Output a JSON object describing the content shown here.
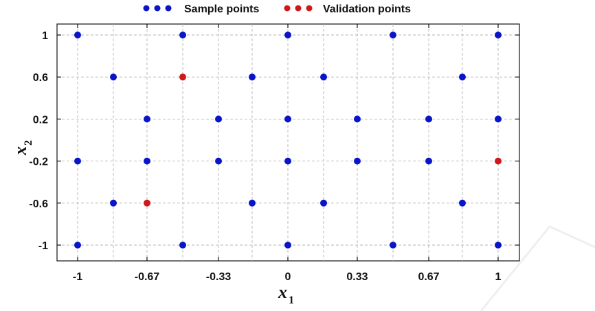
{
  "chart_data": {
    "type": "scatter",
    "xlabel": "x",
    "xlabel_sub": "1",
    "ylabel": "x",
    "ylabel_sub": "2",
    "xlim": [
      -1,
      1
    ],
    "ylim": [
      -1,
      1
    ],
    "x_ticks": [
      -1,
      -0.67,
      -0.33,
      0,
      0.33,
      0.67,
      1
    ],
    "x_tick_labels": [
      "-1",
      "-0.67",
      "-0.33",
      "0",
      "0.33",
      "0.67",
      "1"
    ],
    "y_ticks": [
      -1,
      -0.6,
      -0.2,
      0.2,
      0.6,
      1
    ],
    "y_tick_labels": [
      "-1",
      "-0.6",
      "-0.2",
      "0.2",
      "0.6",
      "1"
    ],
    "grid": true,
    "legend_position": "top",
    "series": [
      {
        "name": "Sample points",
        "color": "#0a14c8",
        "points": [
          [
            -1,
            1
          ],
          [
            -0.5,
            1
          ],
          [
            0,
            1
          ],
          [
            0.5,
            1
          ],
          [
            1,
            1
          ],
          [
            -0.83,
            0.6
          ],
          [
            -0.17,
            0.6
          ],
          [
            0.17,
            0.6
          ],
          [
            0.83,
            0.6
          ],
          [
            -0.67,
            0.2
          ],
          [
            -0.33,
            0.2
          ],
          [
            0,
            0.2
          ],
          [
            0.33,
            0.2
          ],
          [
            0.67,
            0.2
          ],
          [
            1,
            0.2
          ],
          [
            -1,
            -0.2
          ],
          [
            -0.67,
            -0.2
          ],
          [
            -0.33,
            -0.2
          ],
          [
            0,
            -0.2
          ],
          [
            0.33,
            -0.2
          ],
          [
            0.67,
            -0.2
          ],
          [
            -0.83,
            -0.6
          ],
          [
            -0.17,
            -0.6
          ],
          [
            0.17,
            -0.6
          ],
          [
            0.83,
            -0.6
          ],
          [
            -1,
            -1
          ],
          [
            -0.5,
            -1
          ],
          [
            0,
            -1
          ],
          [
            0.5,
            -1
          ],
          [
            1,
            -1
          ]
        ]
      },
      {
        "name": "Validation points",
        "color": "#d01818",
        "points": [
          [
            -0.5,
            0.6
          ],
          [
            1,
            -0.2
          ],
          [
            -0.67,
            -0.6
          ]
        ]
      }
    ]
  }
}
